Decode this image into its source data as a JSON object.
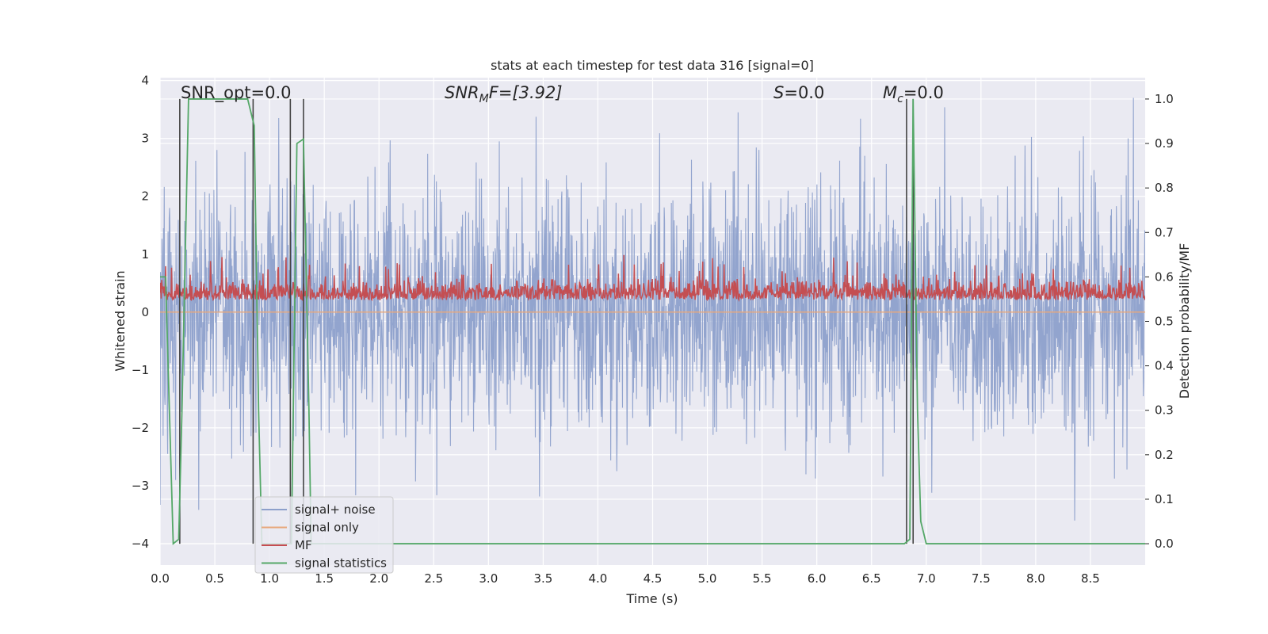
{
  "chart_data": {
    "type": "line",
    "title": "stats at each timestep for test data 316 [signal=0]",
    "xlabel": "Time (s)",
    "ylabel_left": "Whitened strain",
    "ylabel_right": "Detection probability/MF",
    "xlim": [
      0,
      9.0
    ],
    "ylim_left": [
      -4.37,
      4.05
    ],
    "ylim_right": [
      -0.048,
      1.048
    ],
    "x_ticks": [
      "0.0",
      "0.5",
      "1.0",
      "1.5",
      "2.0",
      "2.5",
      "3.0",
      "3.5",
      "4.0",
      "4.5",
      "5.0",
      "5.5",
      "6.0",
      "6.5",
      "7.0",
      "7.5",
      "8.0",
      "8.5"
    ],
    "y_ticks_left": [
      "4",
      "3",
      "2",
      "1",
      "0",
      "−1",
      "−2",
      "−3",
      "−4"
    ],
    "y_ticks_right": [
      "1.0",
      "0.9",
      "0.8",
      "0.7",
      "0.6",
      "0.5",
      "0.4",
      "0.3",
      "0.2",
      "0.1",
      "0.0"
    ],
    "grid": true,
    "legend_placement": "lower-left",
    "annotations": {
      "snr_opt": "SNR_opt=0.0",
      "snr_mf_var": "SNR",
      "snr_mf_sub": "M",
      "snr_mf_rest": "F=[3.92]",
      "s_var": "S",
      "s_rest": "=0.0",
      "mc_var": "M",
      "mc_sub": "c",
      "mc_rest": "=0.0"
    },
    "series": [
      {
        "name": "signal+ noise",
        "color": "#8da0cb",
        "axis": "left",
        "description_values": "noise band roughly within [-2.5, 2.5], spikes to about ±3.7"
      },
      {
        "name": "signal only",
        "color": "#e8a87c",
        "axis": "left",
        "values_constant": 0.0
      },
      {
        "name": "MF",
        "color": "#c44e52",
        "axis": "right",
        "mean": 0.56,
        "range": [
          0.525,
          0.65
        ]
      },
      {
        "name": "signal statistics",
        "color": "#55a868",
        "axis": "right",
        "x": [
          0.0,
          0.05,
          0.12,
          0.17,
          0.2,
          0.26,
          0.8,
          0.86,
          0.9,
          0.93,
          1.2,
          1.25,
          1.31,
          1.36,
          1.38,
          6.8,
          6.85,
          6.88,
          6.92,
          6.95,
          7.0,
          9.0
        ],
        "y": [
          0.6,
          0.6,
          0.0,
          0.01,
          0.3,
          1.0,
          1.0,
          0.94,
          0.3,
          0.0,
          0.0,
          0.9,
          0.91,
          0.3,
          0.0,
          0.0,
          0.01,
          1.0,
          0.3,
          0.05,
          0.0,
          0.0
        ]
      },
      {
        "name": "",
        "color": "#444444",
        "axis": "right",
        "kind": "vertical-lines",
        "x": [
          0.18,
          0.85,
          1.19,
          1.31,
          6.82,
          6.88
        ]
      }
    ]
  }
}
